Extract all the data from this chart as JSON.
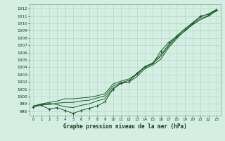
{
  "xlabel": "Graphe pression niveau de la mer (hPa)",
  "bg_color": "#d4eee4",
  "grid_color": "#b0d4c0",
  "line_color": "#1a5c2a",
  "ylim": [
    997.4,
    1012.6
  ],
  "xlim": [
    -0.5,
    23.5
  ],
  "yticks": [
    998,
    999,
    1000,
    1001,
    1002,
    1003,
    1004,
    1005,
    1006,
    1007,
    1008,
    1009,
    1010,
    1011,
    1012
  ],
  "xticks": [
    0,
    1,
    2,
    3,
    4,
    5,
    6,
    7,
    8,
    9,
    10,
    11,
    12,
    13,
    14,
    15,
    16,
    17,
    18,
    19,
    20,
    21,
    22,
    23
  ],
  "line1_x": [
    0,
    1,
    2,
    3,
    4,
    5,
    6,
    7,
    8,
    9,
    10,
    11,
    12,
    13,
    14,
    15,
    16,
    17,
    18,
    19,
    20,
    21,
    22,
    23
  ],
  "line1_y": [
    998.6,
    998.8,
    998.3,
    998.5,
    998.1,
    997.7,
    998.1,
    998.4,
    998.7,
    999.3,
    1001.0,
    1001.8,
    1002.0,
    1003.2,
    1004.0,
    1004.5,
    1006.2,
    1007.4,
    1008.2,
    1009.2,
    1010.0,
    1011.0,
    1011.2,
    1011.8
  ],
  "line2_x": [
    0,
    1,
    2,
    3,
    4,
    5,
    6,
    7,
    8,
    9,
    10,
    11,
    12,
    13,
    14,
    15,
    16,
    17,
    18,
    19,
    20,
    21,
    22,
    23
  ],
  "line2_y": [
    998.7,
    998.9,
    998.9,
    999.1,
    999.2,
    999.2,
    999.4,
    999.5,
    999.8,
    1000.1,
    1001.4,
    1001.9,
    1002.2,
    1003.0,
    1004.0,
    1004.5,
    1005.5,
    1006.9,
    1008.1,
    1008.9,
    1009.8,
    1010.5,
    1011.0,
    1011.7
  ],
  "line3_x": [
    0,
    1,
    2,
    3,
    4,
    5,
    6,
    7,
    8,
    9,
    10,
    11,
    12,
    13,
    14,
    15,
    16,
    17,
    18,
    19,
    20,
    21,
    22,
    23
  ],
  "line3_y": [
    998.7,
    998.9,
    999.1,
    998.9,
    998.6,
    998.5,
    998.8,
    999.0,
    999.4,
    999.7,
    1001.1,
    1001.8,
    1002.0,
    1002.7,
    1003.8,
    1004.3,
    1005.1,
    1006.7,
    1007.9,
    1009.0,
    1009.9,
    1010.7,
    1011.0,
    1011.8
  ],
  "line4_x": [
    0,
    1,
    2,
    3,
    4,
    5,
    6,
    7,
    8,
    9,
    10,
    11,
    12,
    13,
    14,
    15,
    16,
    17,
    18,
    19,
    20,
    21,
    22,
    23
  ],
  "line4_y": [
    998.7,
    999.0,
    999.2,
    999.4,
    999.7,
    999.7,
    999.8,
    999.9,
    1000.1,
    1000.4,
    1001.7,
    1002.1,
    1002.4,
    1003.1,
    1004.1,
    1004.6,
    1005.7,
    1007.1,
    1008.3,
    1009.2,
    1010.1,
    1010.9,
    1011.3,
    1011.9
  ]
}
